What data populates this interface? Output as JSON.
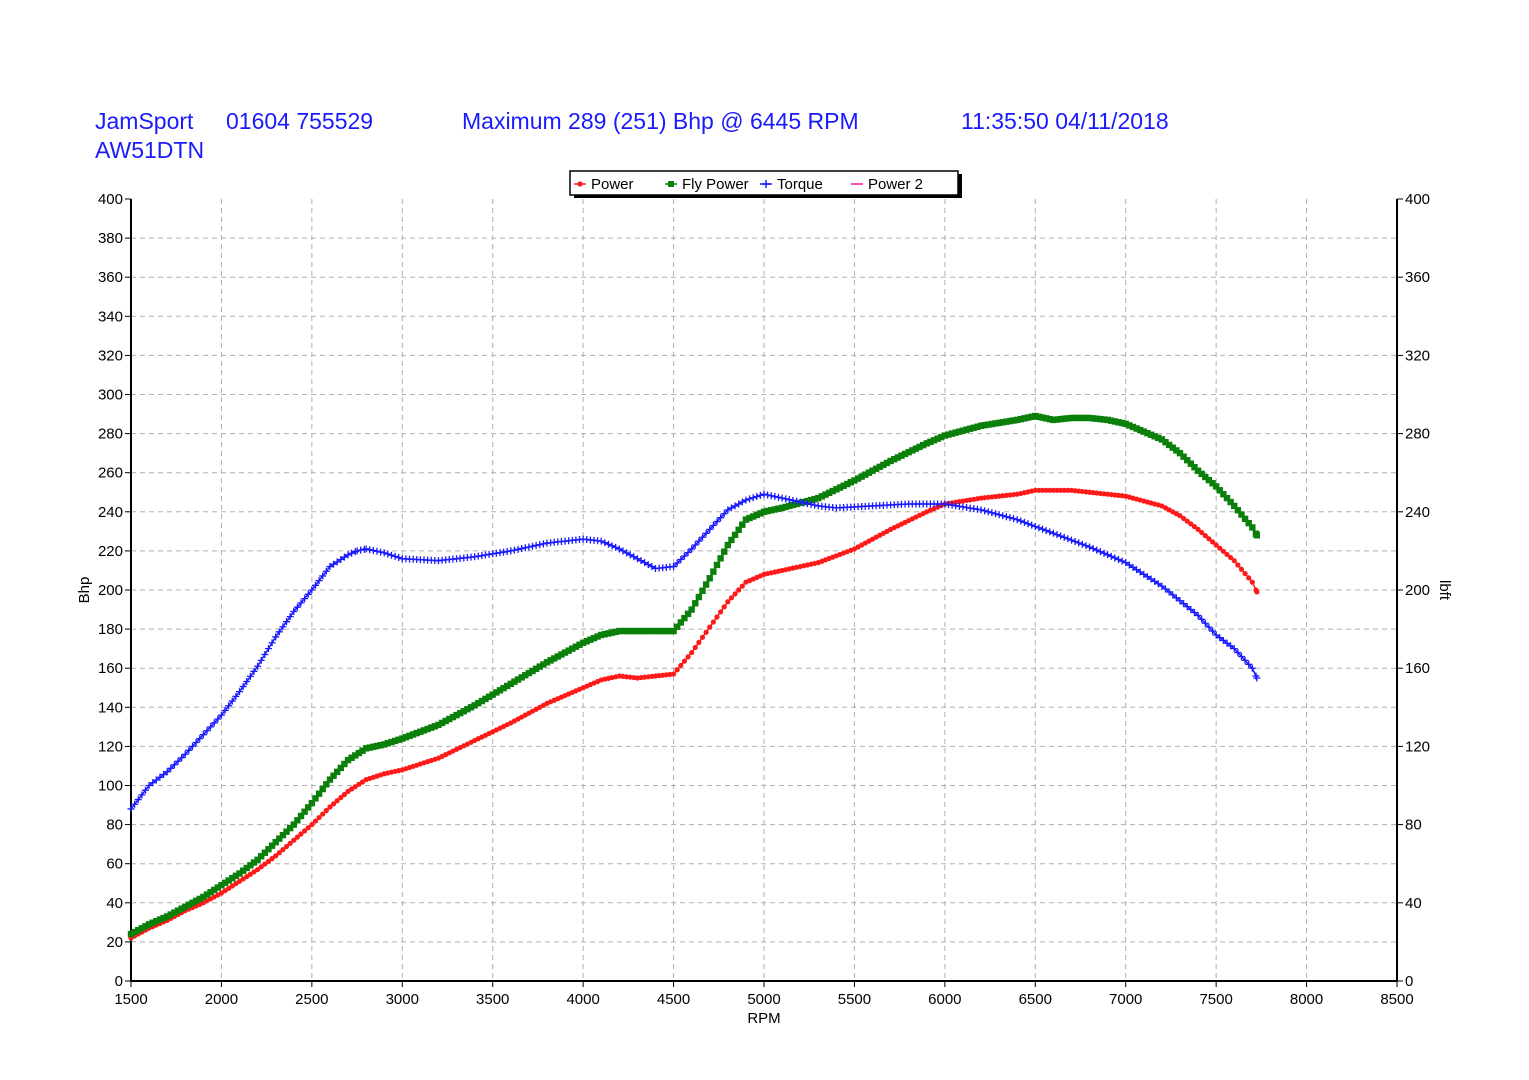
{
  "header": {
    "company": "JamSport",
    "phone": "01604 755529",
    "maximum": "Maximum 289 (251) Bhp @ 6445 RPM",
    "datetime": "11:35:50 04/11/2018",
    "registration": "AW51DTN"
  },
  "colors": {
    "header_text": "#1a1aff",
    "power": "#ff1a1a",
    "fly_power": "#0a800a",
    "torque": "#1a1aff",
    "power2": "#ff1493",
    "grid": "#b0b0b0"
  },
  "chart_data": {
    "type": "line",
    "xlabel": "RPM",
    "ylabel": "Bhp",
    "y2label": "lbft",
    "xlim": [
      1500,
      8500
    ],
    "ylim": [
      0,
      400
    ],
    "y2lim": [
      0,
      400
    ],
    "x_ticks": [
      1500,
      2000,
      2500,
      3000,
      3500,
      4000,
      4500,
      5000,
      5500,
      6000,
      6500,
      7000,
      7500,
      8000,
      8500
    ],
    "y_ticks": [
      0,
      20,
      40,
      60,
      80,
      100,
      120,
      140,
      160,
      180,
      200,
      220,
      240,
      260,
      280,
      300,
      320,
      340,
      360,
      380,
      400
    ],
    "y2_ticks": [
      0,
      40,
      80,
      120,
      160,
      200,
      240,
      280,
      320,
      360,
      400
    ],
    "grid": true,
    "legend_position": "top-center",
    "legend": [
      "Power",
      "Fly Power",
      "Torque",
      "Power 2"
    ],
    "series": [
      {
        "name": "Power",
        "axis": "left",
        "marker": "circle",
        "x": [
          1500,
          1600,
          1700,
          1800,
          1900,
          2000,
          2100,
          2200,
          2300,
          2400,
          2500,
          2600,
          2700,
          2800,
          2900,
          3000,
          3200,
          3400,
          3600,
          3800,
          4000,
          4100,
          4200,
          4300,
          4400,
          4500,
          4600,
          4700,
          4800,
          4900,
          5000,
          5100,
          5300,
          5500,
          5700,
          5900,
          6000,
          6200,
          6400,
          6500,
          6700,
          6900,
          7000,
          7200,
          7300,
          7400,
          7500,
          7600,
          7700,
          7725
        ],
        "y": [
          22,
          27,
          31,
          36,
          40,
          45,
          51,
          57,
          64,
          72,
          80,
          89,
          97,
          103,
          106,
          108,
          114,
          123,
          132,
          142,
          150,
          154,
          156,
          155,
          156,
          157,
          168,
          181,
          194,
          204,
          208,
          210,
          214,
          221,
          231,
          240,
          244,
          247,
          249,
          251,
          251,
          249,
          248,
          243,
          238,
          231,
          223,
          215,
          204,
          199
        ]
      },
      {
        "name": "Fly Power",
        "axis": "left",
        "marker": "square",
        "x": [
          1500,
          1600,
          1700,
          1800,
          1900,
          2000,
          2100,
          2200,
          2300,
          2400,
          2500,
          2600,
          2700,
          2800,
          2900,
          3000,
          3200,
          3400,
          3600,
          3800,
          4000,
          4100,
          4200,
          4300,
          4400,
          4500,
          4600,
          4700,
          4800,
          4900,
          5000,
          5100,
          5300,
          5500,
          5700,
          5900,
          6000,
          6200,
          6400,
          6500,
          6600,
          6700,
          6800,
          6900,
          7000,
          7100,
          7200,
          7300,
          7400,
          7500,
          7600,
          7700,
          7725
        ],
        "y": [
          24,
          29,
          33,
          38,
          43,
          49,
          55,
          62,
          71,
          80,
          91,
          103,
          113,
          119,
          121,
          124,
          131,
          141,
          152,
          163,
          173,
          177,
          179,
          179,
          179,
          179,
          190,
          206,
          223,
          236,
          240,
          242,
          247,
          256,
          266,
          275,
          279,
          284,
          287,
          289,
          287,
          288,
          288,
          287,
          285,
          281,
          277,
          270,
          261,
          253,
          243,
          232,
          228
        ]
      },
      {
        "name": "Torque",
        "axis": "right",
        "marker": "plus",
        "x": [
          1500,
          1600,
          1700,
          1800,
          1900,
          2000,
          2100,
          2200,
          2300,
          2400,
          2500,
          2600,
          2700,
          2750,
          2800,
          2900,
          3000,
          3200,
          3400,
          3600,
          3800,
          4000,
          4100,
          4200,
          4300,
          4400,
          4500,
          4600,
          4700,
          4800,
          4900,
          5000,
          5100,
          5200,
          5300,
          5400,
          5600,
          5800,
          6000,
          6200,
          6400,
          6600,
          6800,
          7000,
          7200,
          7400,
          7500,
          7600,
          7700,
          7725
        ],
        "y": [
          88,
          100,
          107,
          116,
          126,
          136,
          148,
          161,
          176,
          189,
          200,
          212,
          218,
          220,
          221,
          219,
          216,
          215,
          217,
          220,
          224,
          226,
          225,
          221,
          216,
          211,
          212,
          221,
          231,
          241,
          246,
          249,
          247,
          245,
          243,
          242,
          243,
          244,
          244,
          241,
          236,
          229,
          222,
          214,
          202,
          187,
          177,
          170,
          160,
          155
        ]
      },
      {
        "name": "Power 2",
        "axis": "left",
        "marker": "dash",
        "x": [],
        "y": []
      }
    ]
  }
}
